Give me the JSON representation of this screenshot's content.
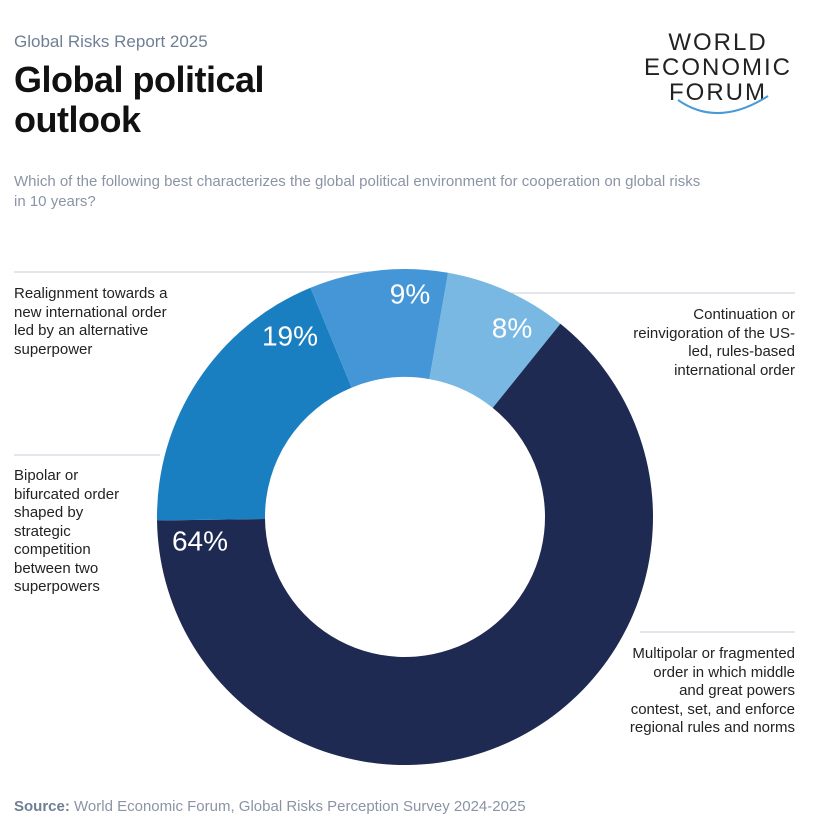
{
  "header": {
    "report": "Global Risks Report 2025",
    "logo": [
      "WORLD",
      "ECONOMIC",
      "FORUM"
    ]
  },
  "chart_data": {
    "type": "donut",
    "title": "Global political outlook",
    "subtitle": "Which of the following best characterizes the global political environment for cooperation on global risks in 10 years?",
    "categories": [
      "Continuation or reinvigoration of the US-led, rules-based international order",
      "Multipolar or fragmented order in which middle and great powers contest, set, and enforce regional rules and norms",
      "Bipolar or bifurcated order shaped by strategic competition between two superpowers",
      "Realignment towards a new international order led by an alternative superpower"
    ],
    "values": [
      8,
      64,
      19,
      9
    ],
    "value_labels": [
      "8%",
      "64%",
      "19%",
      "9%"
    ],
    "colors": [
      "#7ab8e4",
      "#1f2a52",
      "#1a7fc1",
      "#4596d6"
    ]
  },
  "source": {
    "label": "Source:",
    "text": "World Economic Forum, Global Risks Perception Survey 2024-2025"
  }
}
